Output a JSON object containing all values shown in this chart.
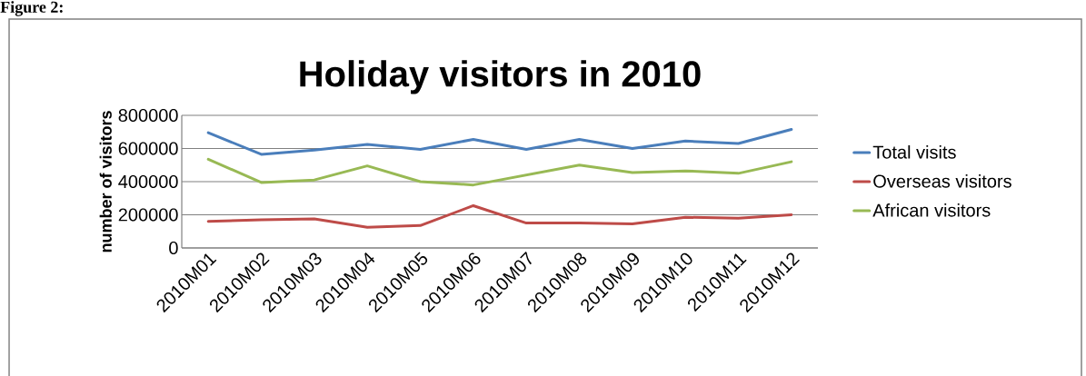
{
  "chart_data": {
    "type": "line",
    "title": "Holiday visitors in 2010",
    "ylabel": "number of visitors",
    "annotations": [
      "Figure 2:"
    ],
    "categories": [
      "2010M01",
      "2010M02",
      "2010M03",
      "2010M04",
      "2010M05",
      "2010M06",
      "2010M07",
      "2010M08",
      "2010M09",
      "2010M10",
      "2010M11",
      "2010M12"
    ],
    "series": [
      {
        "name": "Total visits",
        "color": "#4a7ebb",
        "values": [
          695000,
          565000,
          590000,
          625000,
          595000,
          655000,
          595000,
          655000,
          600000,
          645000,
          630000,
          715000
        ]
      },
      {
        "name": "Overseas visitors",
        "color": "#be4b48",
        "values": [
          160000,
          170000,
          175000,
          125000,
          135000,
          255000,
          150000,
          150000,
          145000,
          185000,
          180000,
          200000
        ]
      },
      {
        "name": "African visitors",
        "color": "#98b954",
        "values": [
          535000,
          395000,
          410000,
          495000,
          400000,
          380000,
          440000,
          500000,
          455000,
          465000,
          450000,
          520000
        ]
      }
    ],
    "ylim": [
      0,
      800000
    ],
    "yticks": [
      0,
      200000,
      400000,
      600000,
      800000
    ],
    "grid": "y",
    "legend": "right",
    "marker": "none"
  }
}
